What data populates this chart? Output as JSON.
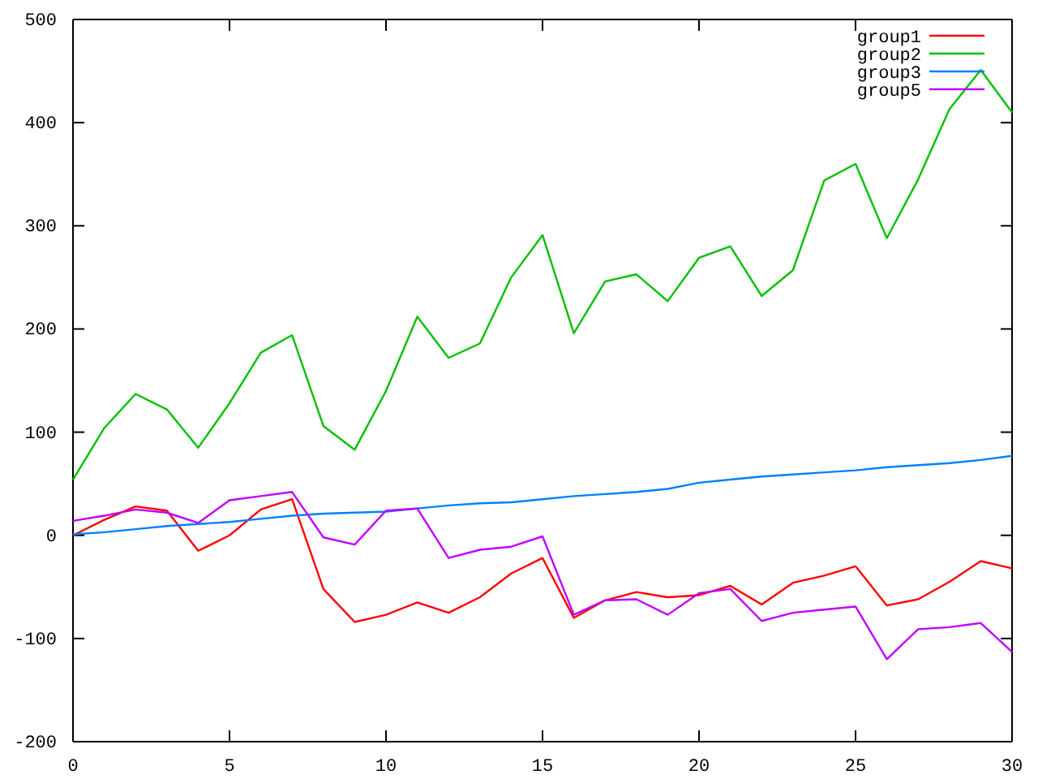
{
  "chart_data": {
    "type": "line",
    "x": [
      0,
      1,
      2,
      3,
      4,
      5,
      6,
      7,
      8,
      9,
      10,
      11,
      12,
      13,
      14,
      15,
      16,
      17,
      18,
      19,
      20,
      21,
      22,
      23,
      24,
      25,
      26,
      27,
      28,
      29,
      30
    ],
    "series": [
      {
        "name": "group1",
        "color": "#ff0000",
        "values": [
          0,
          15,
          28,
          24,
          -15,
          0,
          25,
          35,
          -52,
          -84,
          -77,
          -65,
          -75,
          -60,
          -37,
          -22,
          -80,
          -63,
          -55,
          -60,
          -58,
          -49,
          -67,
          -46,
          -39,
          -30,
          -68,
          -62,
          -45,
          -25,
          -32
        ]
      },
      {
        "name": "group2",
        "color": "#00c000",
        "values": [
          54,
          104,
          137,
          122,
          85,
          128,
          177,
          194,
          106,
          83,
          140,
          212,
          172,
          186,
          250,
          291,
          196,
          246,
          253,
          227,
          269,
          280,
          232,
          257,
          344,
          360,
          288,
          345,
          413,
          451,
          410
        ]
      },
      {
        "name": "group3",
        "color": "#0080ff",
        "values": [
          1,
          3,
          6,
          9,
          11,
          13,
          16,
          19,
          21,
          22,
          23,
          26,
          29,
          31,
          32,
          35,
          38,
          40,
          42,
          45,
          51,
          54,
          57,
          59,
          61,
          63,
          66,
          68,
          70,
          73,
          77
        ]
      },
      {
        "name": "group5",
        "color": "#c000ff",
        "values": [
          14,
          19,
          25,
          22,
          12,
          34,
          38,
          42,
          -2,
          -9,
          24,
          26,
          -22,
          -14,
          -11,
          -1,
          -77,
          -63,
          -62,
          -77,
          -56,
          -52,
          -83,
          -75,
          -72,
          -69,
          -120,
          -91,
          -89,
          -85,
          -113
        ]
      }
    ],
    "xlim": [
      0,
      30
    ],
    "xticks": [
      0,
      5,
      10,
      15,
      20,
      25,
      30
    ],
    "ylim": [
      -200,
      500
    ],
    "yticks": [
      -200,
      -100,
      0,
      100,
      200,
      300,
      400,
      500
    ],
    "legend": "top right",
    "grid": false,
    "line_style": "solid",
    "marker": "none"
  }
}
